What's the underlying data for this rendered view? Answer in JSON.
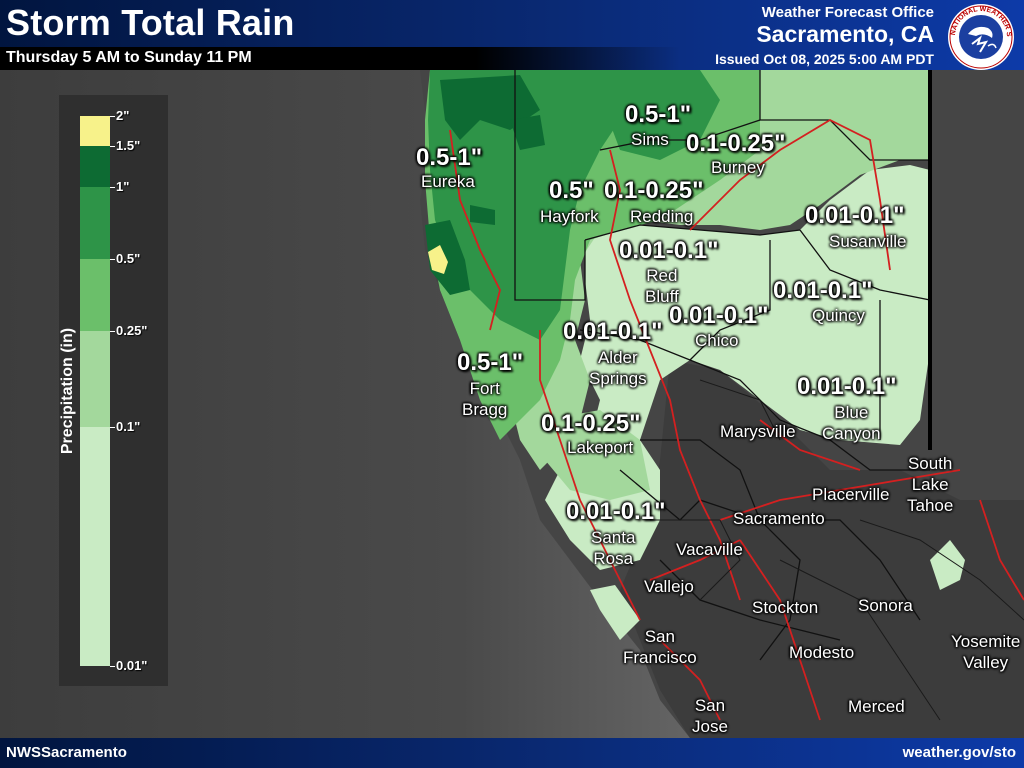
{
  "header": {
    "title": "Storm Total Rain",
    "subtitle": "Thursday 5 AM to Sunday 11 PM",
    "office_label": "Weather Forecast Office",
    "office_city": "Sacramento, CA",
    "issued": "Issued Oct 08, 2025 5:00 AM PDT",
    "logo_text": "NATIONAL WEATHER SERVICE"
  },
  "legend": {
    "title": "Precipitation (in)",
    "labels": [
      "2\"",
      "1.5\"",
      "1\"",
      "0.5\"",
      "0.25\"",
      "0.1\"",
      "0.01\""
    ],
    "colors": {
      "1.5_2": "#f7f28a",
      "1_1.5": "#0d6b33",
      "0.5_1": "#2e9448",
      "0.25_0.5": "#6bbf6a",
      "0.1_0.25": "#a3d89c",
      "0.01_0.1": "#c9ebc4"
    }
  },
  "amounts": {
    "sims": "0.5-1\"",
    "eureka": "0.5-1\"",
    "burney": "0.1-0.25\"",
    "hayfork": "0.5\"",
    "redding": "0.1-0.25\"",
    "susanville": "0.01-0.1\"",
    "red_bluff": "0.01-0.1\"",
    "quincy": "0.01-0.1\"",
    "alder_springs": "0.01-0.1\"",
    "chico": "0.01-0.1\"",
    "fort_bragg": "0.5-1\"",
    "blue_canyon": "0.01-0.1\"",
    "lakeport": "0.1-0.25\"",
    "santa_rosa": "0.01-0.1\""
  },
  "cities": {
    "sims": "Sims",
    "eureka": "Eureka",
    "burney": "Burney",
    "hayfork": "Hayfork",
    "redding": "Redding",
    "susanville": "Susanville",
    "red_bluff_1": "Red",
    "red_bluff_2": "Bluff",
    "quincy": "Quincy",
    "alder_springs_1": "Alder",
    "alder_springs_2": "Springs",
    "chico": "Chico",
    "fort_bragg_1": "Fort",
    "fort_bragg_2": "Bragg",
    "blue_canyon_1": "Blue",
    "blue_canyon_2": "Canyon",
    "marysville": "Marysville",
    "lakeport": "Lakeport",
    "south_lake_tahoe_1": "South",
    "south_lake_tahoe_2": "Lake",
    "south_lake_tahoe_3": "Tahoe",
    "placerville": "Placerville",
    "sacramento": "Sacramento",
    "santa_rosa_1": "Santa",
    "santa_rosa_2": "Rosa",
    "vacaville": "Vacaville",
    "vallejo": "Vallejo",
    "stockton": "Stockton",
    "sonora": "Sonora",
    "san_francisco_1": "San",
    "san_francisco_2": "Francisco",
    "modesto": "Modesto",
    "yosemite_valley_1": "Yosemite",
    "yosemite_valley_2": "Valley",
    "merced": "Merced",
    "san_jose_1": "San",
    "san_jose_2": "Jose"
  },
  "map_colors": {
    "ocean_far": "#3d3d3d",
    "ocean_near": "#7a7a7a",
    "land_outside": "#454545",
    "highways": "#d42020",
    "county_lines": "#111111"
  },
  "footer": {
    "left": "NWSSacramento",
    "right": "weather.gov/sto"
  }
}
